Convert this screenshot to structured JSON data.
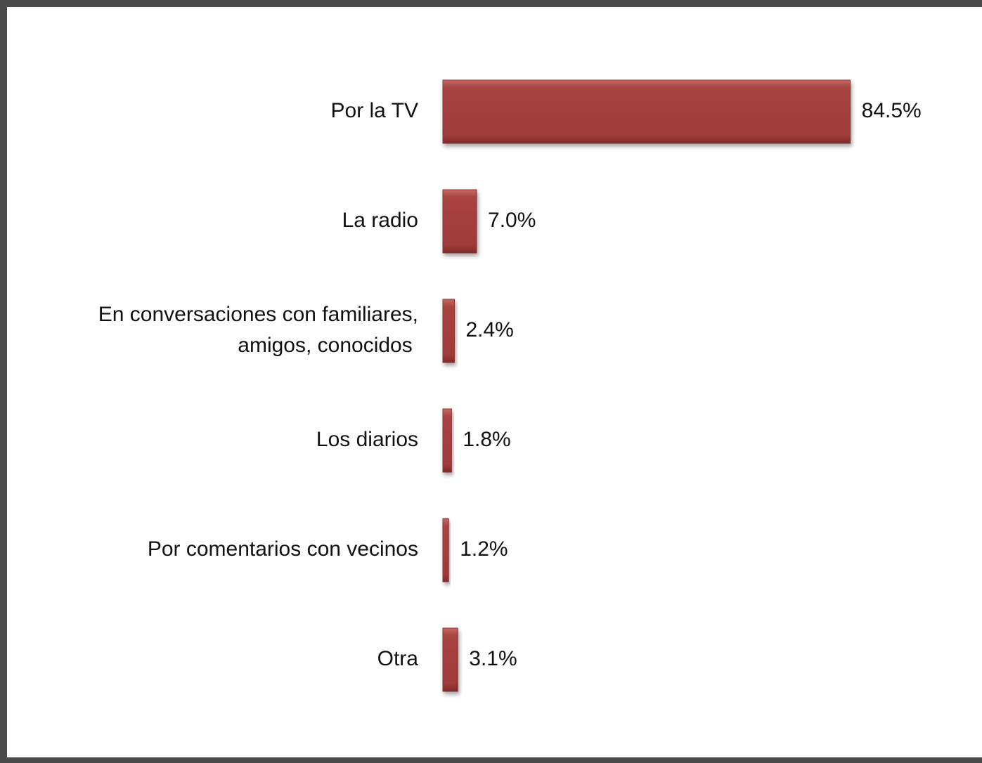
{
  "chart_data": {
    "type": "bar",
    "orientation": "horizontal",
    "title": "",
    "xlabel": "",
    "ylabel": "",
    "xlim": [
      0,
      100
    ],
    "grid": false,
    "legend": "none",
    "bar_color": "#a03d3b",
    "value_format": "percent",
    "categories": [
      [
        "Por la TV"
      ],
      [
        "La radio"
      ],
      [
        "En conversaciones con familiares,",
        "amigos, conocidos"
      ],
      [
        "Los diarios"
      ],
      [
        "Por comentarios con vecinos"
      ],
      [
        "Otra"
      ]
    ],
    "values": [
      84.5,
      7.0,
      2.4,
      1.8,
      1.2,
      3.1
    ],
    "value_labels": [
      "84.5%",
      "7.0%",
      "2.4%",
      "1.8%",
      "1.2%",
      "3.1%"
    ]
  }
}
